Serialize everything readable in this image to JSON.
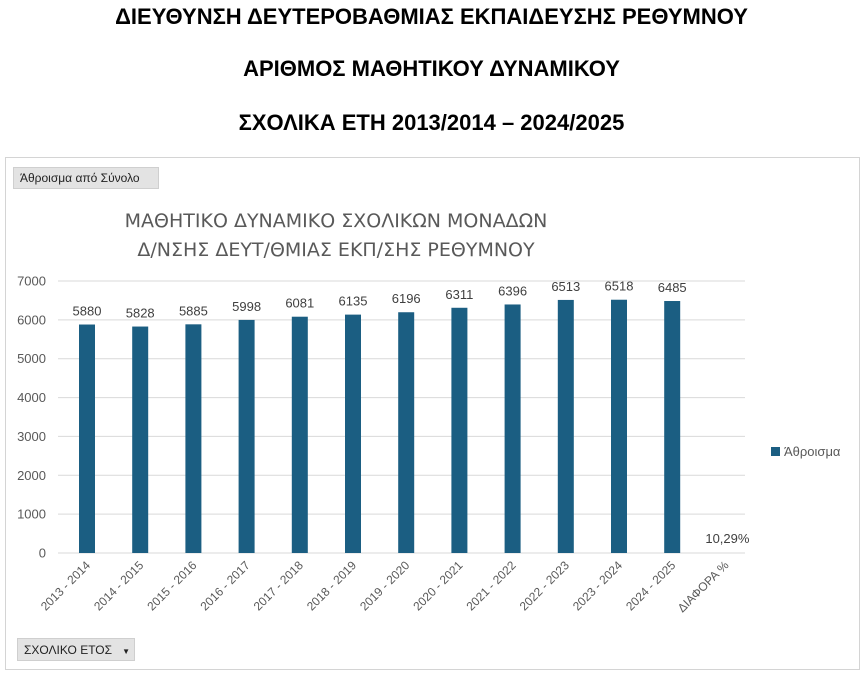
{
  "header": {
    "title_line1": "ΔΙΕΥΘΥΝΣΗ ΔΕΥΤΕΡΟΒΑΘΜΙΑΣ ΕΚΠΑΙΔΕΥΣΗΣ ΡΕΘΥΜΝΟΥ",
    "title_line2": "ΑΡΙΘΜΟΣ ΜΑΘΗΤΙΚΟΥ ΔΥΝΑΜΙΚΟΥ",
    "title_line3": "ΣΧΟΛΙΚΑ ΕΤΗ 2013/2014 – 2024/2025"
  },
  "pivot": {
    "value_field_label": "Άθροισμα από Σύνολο",
    "axis_field_label": "ΣΧΟΛΙΚΟ ΕΤΟΣ",
    "axis_field_icon": "dropdown-arrow-icon"
  },
  "colors": {
    "bar": "#1b5e82",
    "gridline": "#d9d9d9"
  },
  "chart_data": {
    "type": "bar",
    "title_line1": "ΜΑΘΗΤΙΚΟ ΔΥΝΑΜΙΚΟ ΣΧΟΛΙΚΩΝ ΜΟΝΑΔΩΝ",
    "title_line2": "Δ/ΝΣΗΣ ΔΕΥΤ/ΘΜΙΑΣ ΕΚΠ/ΣΗΣ ΡΕΘΥΜΝΟΥ",
    "categories": [
      "2013 - 2014",
      "2014 - 2015",
      "2015 - 2016",
      "2016 - 2017",
      "2017 - 2018",
      "2018 - 2019",
      "2019 - 2020",
      "2020 - 2021",
      "2021 - 2022",
      "2022 - 2023",
      "2023 - 2024",
      "2024 - 2025",
      "ΔΙΑΦΟΡΑ %"
    ],
    "series": [
      {
        "name": "Άθροισμα",
        "values": [
          5880,
          5828,
          5885,
          5998,
          6081,
          6135,
          6196,
          6311,
          6396,
          6513,
          6518,
          6485,
          0.1029
        ],
        "data_labels": [
          "5880",
          "5828",
          "5885",
          "5998",
          "6081",
          "6135",
          "6196",
          "6311",
          "6396",
          "6513",
          "6518",
          "6485",
          "10,29%"
        ]
      }
    ],
    "yticks": [
      "0",
      "1000",
      "2000",
      "3000",
      "4000",
      "5000",
      "6000",
      "7000"
    ],
    "ylim": [
      0,
      7000
    ],
    "grid": true,
    "legend_position": "right"
  }
}
